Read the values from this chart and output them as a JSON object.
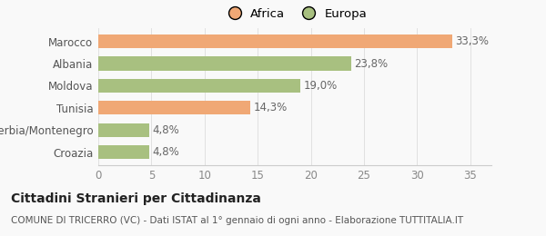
{
  "categories": [
    "Marocco",
    "Albania",
    "Moldova",
    "Tunisia",
    "Serbia/Montenegro",
    "Croazia"
  ],
  "values": [
    33.3,
    23.8,
    19.0,
    14.3,
    4.8,
    4.8
  ],
  "labels": [
    "33,3%",
    "23,8%",
    "19,0%",
    "14,3%",
    "4,8%",
    "4,8%"
  ],
  "colors": [
    "#f0a875",
    "#a8c080",
    "#a8c080",
    "#f0a875",
    "#a8c080",
    "#a8c080"
  ],
  "legend_items": [
    {
      "label": "Africa",
      "color": "#f0a875"
    },
    {
      "label": "Europa",
      "color": "#a8c080"
    }
  ],
  "xlim": [
    0,
    37
  ],
  "xticks": [
    0,
    5,
    10,
    15,
    20,
    25,
    30,
    35
  ],
  "title_bold": "Cittadini Stranieri per Cittadinanza",
  "subtitle": "COMUNE DI TRICERRO (VC) - Dati ISTAT al 1° gennaio di ogni anno - Elaborazione TUTTITALIA.IT",
  "background_color": "#f9f9f9",
  "bar_height": 0.62,
  "label_fontsize": 8.5,
  "tick_fontsize": 8.5,
  "title_fontsize": 10,
  "subtitle_fontsize": 7.5,
  "grid_color": "#dddddd"
}
